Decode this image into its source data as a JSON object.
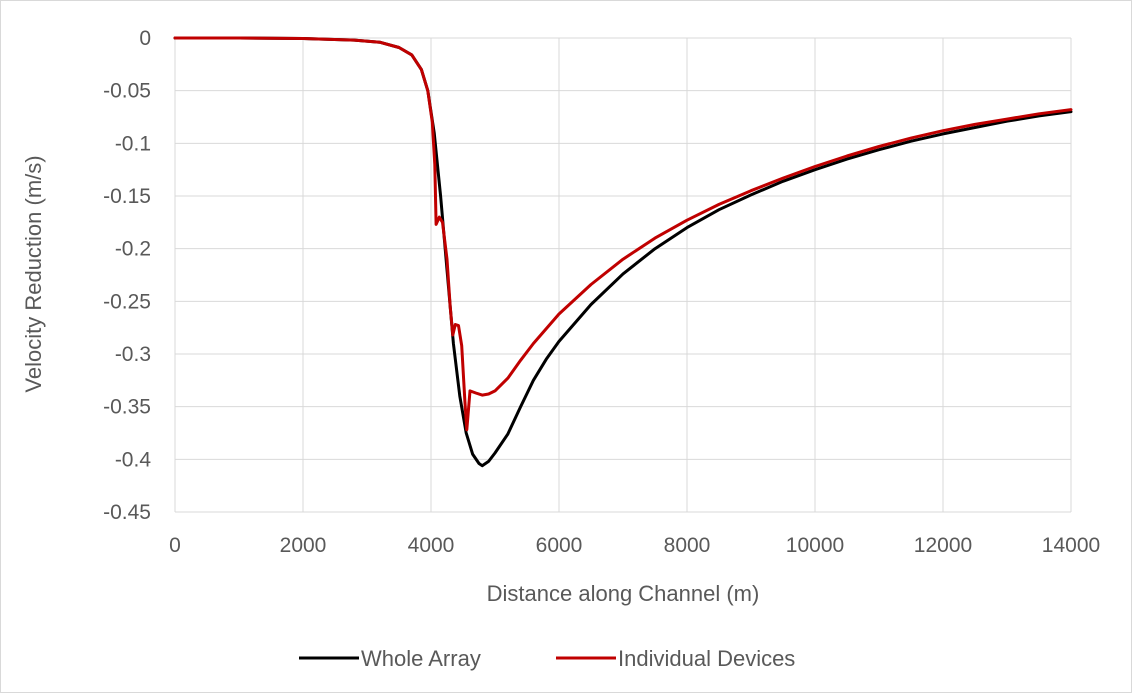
{
  "chart_data": {
    "type": "line",
    "title": "",
    "xlabel": "Distance along Channel (m)",
    "ylabel": "Velocity Reduction (m/s)",
    "xlim": [
      0,
      14000
    ],
    "ylim": [
      -0.45,
      0
    ],
    "x_ticks": [
      0,
      2000,
      4000,
      6000,
      8000,
      10000,
      12000,
      14000
    ],
    "x_tick_labels": [
      "0",
      "2000",
      "4000",
      "6000",
      "8000",
      "10000",
      "12000",
      "14000"
    ],
    "y_ticks": [
      0,
      -0.05,
      -0.1,
      -0.15,
      -0.2,
      -0.25,
      -0.3,
      -0.35,
      -0.4,
      -0.45
    ],
    "y_tick_labels": [
      "0",
      "-0.05",
      "-0.1",
      "-0.15",
      "-0.2",
      "-0.25",
      "-0.3",
      "-0.35",
      "-0.4",
      "-0.45"
    ],
    "grid": true,
    "legend_position": "bottom",
    "series": [
      {
        "name": "Whole Array",
        "color": "#000000",
        "points": [
          [
            0,
            0
          ],
          [
            1000,
            0
          ],
          [
            2000,
            -0.0005
          ],
          [
            2800,
            -0.002
          ],
          [
            3200,
            -0.004
          ],
          [
            3500,
            -0.009
          ],
          [
            3700,
            -0.016
          ],
          [
            3850,
            -0.03
          ],
          [
            3950,
            -0.05
          ],
          [
            4050,
            -0.09
          ],
          [
            4150,
            -0.15
          ],
          [
            4250,
            -0.22
          ],
          [
            4350,
            -0.29
          ],
          [
            4450,
            -0.34
          ],
          [
            4550,
            -0.375
          ],
          [
            4650,
            -0.395
          ],
          [
            4750,
            -0.404
          ],
          [
            4800,
            -0.406
          ],
          [
            4900,
            -0.402
          ],
          [
            5000,
            -0.394
          ],
          [
            5200,
            -0.376
          ],
          [
            5400,
            -0.35
          ],
          [
            5600,
            -0.325
          ],
          [
            5800,
            -0.305
          ],
          [
            6000,
            -0.288
          ],
          [
            6500,
            -0.253
          ],
          [
            7000,
            -0.224
          ],
          [
            7500,
            -0.2
          ],
          [
            8000,
            -0.18
          ],
          [
            8500,
            -0.163
          ],
          [
            9000,
            -0.149
          ],
          [
            9500,
            -0.136
          ],
          [
            10000,
            -0.125
          ],
          [
            10500,
            -0.115
          ],
          [
            11000,
            -0.106
          ],
          [
            11500,
            -0.098
          ],
          [
            12000,
            -0.091
          ],
          [
            12500,
            -0.085
          ],
          [
            13000,
            -0.079
          ],
          [
            13500,
            -0.074
          ],
          [
            14000,
            -0.07
          ]
        ]
      },
      {
        "name": "Individual Devices",
        "color": "#c00000",
        "points": [
          [
            0,
            0
          ],
          [
            1000,
            0
          ],
          [
            2000,
            -0.0005
          ],
          [
            2800,
            -0.002
          ],
          [
            3200,
            -0.004
          ],
          [
            3500,
            -0.009
          ],
          [
            3700,
            -0.016
          ],
          [
            3850,
            -0.03
          ],
          [
            3950,
            -0.05
          ],
          [
            4020,
            -0.08
          ],
          [
            4060,
            -0.12
          ],
          [
            4080,
            -0.177
          ],
          [
            4130,
            -0.17
          ],
          [
            4180,
            -0.175
          ],
          [
            4250,
            -0.21
          ],
          [
            4300,
            -0.255
          ],
          [
            4340,
            -0.282
          ],
          [
            4380,
            -0.272
          ],
          [
            4430,
            -0.273
          ],
          [
            4480,
            -0.292
          ],
          [
            4530,
            -0.345
          ],
          [
            4560,
            -0.372
          ],
          [
            4610,
            -0.335
          ],
          [
            4700,
            -0.337
          ],
          [
            4800,
            -0.339
          ],
          [
            4900,
            -0.338
          ],
          [
            5000,
            -0.335
          ],
          [
            5200,
            -0.323
          ],
          [
            5400,
            -0.306
          ],
          [
            5600,
            -0.29
          ],
          [
            6000,
            -0.262
          ],
          [
            6500,
            -0.234
          ],
          [
            7000,
            -0.21
          ],
          [
            7500,
            -0.19
          ],
          [
            8000,
            -0.173
          ],
          [
            8500,
            -0.158
          ],
          [
            9000,
            -0.145
          ],
          [
            9500,
            -0.133
          ],
          [
            10000,
            -0.122
          ],
          [
            10500,
            -0.112
          ],
          [
            11000,
            -0.103
          ],
          [
            11500,
            -0.095
          ],
          [
            12000,
            -0.088
          ],
          [
            12500,
            -0.082
          ],
          [
            13000,
            -0.077
          ],
          [
            13500,
            -0.072
          ],
          [
            14000,
            -0.068
          ]
        ]
      }
    ]
  }
}
